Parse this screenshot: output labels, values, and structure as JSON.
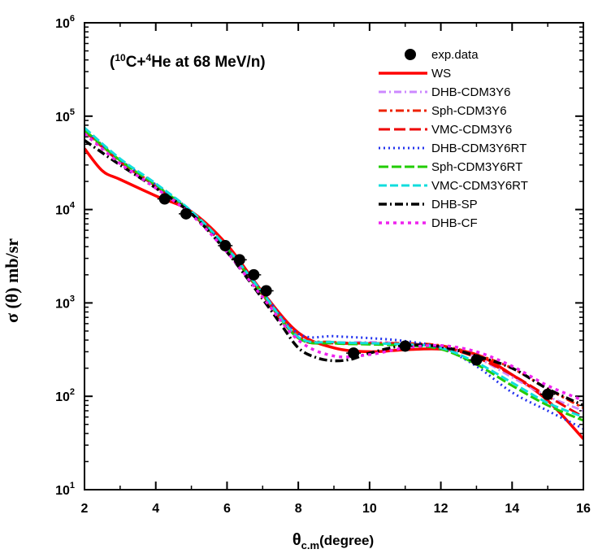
{
  "chart_data": {
    "type": "line",
    "title": {
      "open": "(",
      "sup1": "10",
      "mid": "C+",
      "sup2": "4",
      "rest": "He at 68 MeV/n)"
    },
    "xlabel": {
      "main": "θ",
      "sub": "c.m",
      "rest": "(degree)"
    },
    "ylabel": "σ (θ) mb/sr",
    "xlim": [
      2,
      16
    ],
    "ylim": [
      10,
      1000000
    ],
    "yscale": "log",
    "x_ticks": [
      "2",
      "4",
      "6",
      "8",
      "10",
      "12",
      "14",
      "16"
    ],
    "y_ticks": [
      {
        "base": "10",
        "exp": "1"
      },
      {
        "base": "10",
        "exp": "2"
      },
      {
        "base": "10",
        "exp": "3"
      },
      {
        "base": "10",
        "exp": "4"
      },
      {
        "base": "10",
        "exp": "5"
      },
      {
        "base": "10",
        "exp": "6"
      }
    ],
    "exp_data": {
      "name": "exp.data",
      "x": [
        4.25,
        4.85,
        5.95,
        6.35,
        6.75,
        7.1,
        9.55,
        11.0,
        13.0,
        15.0
      ],
      "y": [
        13000,
        9000,
        4100,
        2900,
        2000,
        1350,
        290,
        345,
        245,
        105
      ]
    },
    "series": [
      {
        "name": "WS",
        "color": "#ff0000",
        "dash": "",
        "width": 3.5,
        "x": [
          2,
          2.5,
          3,
          4,
          5,
          6,
          7,
          8,
          9,
          10,
          11,
          12,
          13,
          14,
          15,
          16
        ],
        "y": [
          45000,
          26000,
          21000,
          14000,
          9500,
          4200,
          1300,
          480,
          330,
          300,
          315,
          320,
          280,
          170,
          90,
          35
        ]
      },
      {
        "name": "DHB-CDM3Y6",
        "color": "#cc88ff",
        "dash": "9 4 2 4",
        "width": 3,
        "x": [
          2,
          3,
          4,
          5,
          6,
          7,
          8,
          9,
          10,
          11,
          12,
          13,
          14,
          15,
          16
        ],
        "y": [
          68000,
          32000,
          17500,
          9000,
          3700,
          1200,
          430,
          380,
          380,
          370,
          340,
          260,
          160,
          100,
          70
        ]
      },
      {
        "name": "Sph-CDM3Y6",
        "color": "#ee2200",
        "dash": "10 4 3 4",
        "width": 3,
        "x": [
          2,
          3,
          4,
          5,
          6,
          7,
          8,
          9,
          10,
          11,
          12,
          13,
          14,
          15,
          16
        ],
        "y": [
          70000,
          33000,
          18000,
          9200,
          3800,
          1250,
          440,
          380,
          370,
          370,
          350,
          280,
          200,
          120,
          75
        ]
      },
      {
        "name": "VMC-CDM3Y6",
        "color": "#ee0000",
        "dash": "14 5",
        "width": 3,
        "x": [
          2,
          3,
          4,
          5,
          6,
          7,
          8,
          9,
          10,
          11,
          12,
          13,
          14,
          15,
          16
        ],
        "y": [
          69000,
          32500,
          17800,
          9100,
          3750,
          1220,
          420,
          370,
          370,
          360,
          340,
          260,
          170,
          100,
          60
        ]
      },
      {
        "name": "DHB-CDM3Y6RT",
        "color": "#2233ee",
        "dash": "2 4",
        "width": 3,
        "x": [
          2,
          3,
          4,
          5,
          6,
          7,
          8,
          9,
          10,
          11,
          12,
          13,
          14,
          15,
          16
        ],
        "y": [
          72000,
          34000,
          18500,
          9500,
          3900,
          1300,
          470,
          440,
          420,
          390,
          330,
          210,
          110,
          70,
          45
        ]
      },
      {
        "name": "Sph-CDM3Y6RT",
        "color": "#22cc00",
        "dash": "12 4",
        "width": 3,
        "x": [
          2,
          3,
          4,
          5,
          6,
          7,
          8,
          9,
          10,
          11,
          12,
          13,
          14,
          15,
          16
        ],
        "y": [
          71000,
          33500,
          18200,
          9300,
          3800,
          1250,
          420,
          370,
          360,
          350,
          320,
          220,
          130,
          80,
          55
        ]
      },
      {
        "name": "VMC-CDM3Y6RT",
        "color": "#11dddd",
        "dash": "10 4",
        "width": 3,
        "x": [
          2,
          3,
          4,
          5,
          6,
          7,
          8,
          9,
          10,
          11,
          12,
          13,
          14,
          15,
          16
        ],
        "y": [
          75000,
          35000,
          19000,
          9600,
          3900,
          1280,
          430,
          380,
          370,
          360,
          330,
          230,
          140,
          85,
          60
        ]
      },
      {
        "name": "DHB-SP",
        "color": "#000000",
        "dash": "10 4 2 4",
        "width": 3.5,
        "x": [
          2,
          3,
          4,
          5,
          6,
          7,
          7.5,
          8,
          8.5,
          9,
          9.5,
          10,
          11,
          12,
          13,
          14,
          15,
          16
        ],
        "y": [
          55000,
          30000,
          17000,
          9000,
          3500,
          1100,
          600,
          330,
          260,
          240,
          250,
          290,
          350,
          340,
          270,
          200,
          120,
          80
        ]
      },
      {
        "name": "DHB-CF",
        "color": "#ee22ee",
        "dash": "4 5",
        "width": 3.5,
        "x": [
          2,
          3,
          4,
          5,
          6,
          7,
          8,
          9,
          10,
          11,
          12,
          13,
          14,
          15,
          16
        ],
        "y": [
          65000,
          31000,
          17000,
          8800,
          3500,
          1150,
          400,
          270,
          280,
          330,
          350,
          300,
          210,
          130,
          90
        ]
      }
    ]
  }
}
